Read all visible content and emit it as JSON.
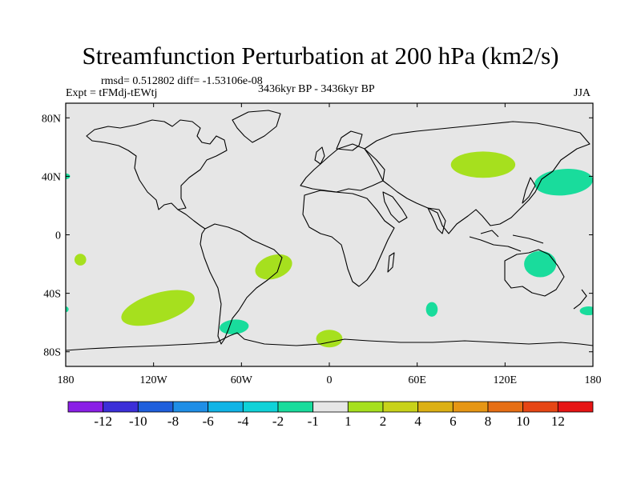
{
  "title": "Streamfunction Perturbation at 200 hPa (km2/s)",
  "stats": "rmsd= 0.512802 diff= -1.53106e-08",
  "experiment": "Expt = tFMdj-tEWtj",
  "period": "3436kyr BP - 3436kyr BP",
  "season": "JJA",
  "chart_data": {
    "type": "contour-map",
    "variable": "Streamfunction perturbation",
    "level": "200 hPa",
    "units": "km2/s",
    "x_ticks": [
      {
        "lon": -180,
        "label": "180"
      },
      {
        "lon": -120,
        "label": "120W"
      },
      {
        "lon": -60,
        "label": "60W"
      },
      {
        "lon": 0,
        "label": "0"
      },
      {
        "lon": 60,
        "label": "60E"
      },
      {
        "lon": 120,
        "label": "120E"
      },
      {
        "lon": 180,
        "label": "180"
      }
    ],
    "y_ticks": [
      {
        "lat": 80,
        "label": "80N"
      },
      {
        "lat": 40,
        "label": "40N"
      },
      {
        "lat": 0,
        "label": "0"
      },
      {
        "lat": -40,
        "label": "40S"
      },
      {
        "lat": -80,
        "label": "80S"
      }
    ],
    "lon_range": [
      -180,
      180
    ],
    "lat_range": [
      -90,
      90
    ],
    "colorbar": {
      "colors": [
        "#8a1fe6",
        "#3c2fd8",
        "#1f5fdc",
        "#1f8ee6",
        "#10b4e6",
        "#10d2d8",
        "#19dc9c",
        "#e6e6e6",
        "#a6e01e",
        "#c8d21a",
        "#dcb014",
        "#e69614",
        "#e66e14",
        "#e64614",
        "#e61414"
      ],
      "labels": [
        "-12",
        "-10",
        "-8",
        "-6",
        "-4",
        "-2",
        "-1",
        "1",
        "2",
        "4",
        "6",
        "8",
        "10",
        "12"
      ]
    },
    "anomalies": [
      {
        "name": "pos-mongolia",
        "lon": 105,
        "lat": 48,
        "rlon": 22,
        "rlat": 9,
        "rot": 0,
        "sign": "positive",
        "value": "1 to 2"
      },
      {
        "name": "neg-nw-pacific",
        "lon": 160,
        "lat": 36,
        "rlon": 20,
        "rlat": 9,
        "rot": -5,
        "sign": "negative",
        "value": "-1 to -2"
      },
      {
        "name": "neg-west-edge",
        "lon": -180,
        "lat": 40,
        "rlon": 3,
        "rlat": 2,
        "rot": 0,
        "sign": "negative",
        "value": "-1 to -2"
      },
      {
        "name": "pos-south-pacific-small",
        "lon": -170,
        "lat": -17,
        "rlon": 4,
        "rlat": 4,
        "rot": 0,
        "sign": "positive",
        "value": "1 to 2"
      },
      {
        "name": "pos-south-atlantic",
        "lon": -38,
        "lat": -22,
        "rlon": 13,
        "rlat": 8,
        "rot": -18,
        "sign": "positive",
        "value": "1 to 2"
      },
      {
        "name": "pos-south-pacific-large",
        "lon": -117,
        "lat": -50,
        "rlon": 26,
        "rlat": 10,
        "rot": -17,
        "sign": "positive",
        "value": "1 to 2"
      },
      {
        "name": "neg-australia",
        "lon": 144,
        "lat": -20,
        "rlon": 11,
        "rlat": 9,
        "rot": 0,
        "sign": "negative",
        "value": "-1 to -2"
      },
      {
        "name": "neg-indian-small",
        "lon": 70,
        "lat": -51,
        "rlon": 4,
        "rlat": 5,
        "rot": 0,
        "sign": "negative",
        "value": "-1 to -2"
      },
      {
        "name": "neg-drake-passage",
        "lon": -65,
        "lat": -63,
        "rlon": 10,
        "rlat": 5,
        "rot": -5,
        "sign": "negative",
        "value": "-1 to -2"
      },
      {
        "name": "pos-weddell",
        "lon": 0,
        "lat": -71,
        "rlon": 9,
        "rlat": 6,
        "rot": 0,
        "sign": "positive",
        "value": "1 to 2"
      },
      {
        "name": "neg-east-edge",
        "lon": 177,
        "lat": -52,
        "rlon": 6,
        "rlat": 3,
        "rot": 0,
        "sign": "negative",
        "value": "-1 to -2"
      },
      {
        "name": "neg-west-edge-south",
        "lon": -180,
        "lat": -51,
        "rlon": 2,
        "rlat": 2,
        "rot": 0,
        "sign": "negative",
        "value": "-1 to -2"
      }
    ]
  }
}
